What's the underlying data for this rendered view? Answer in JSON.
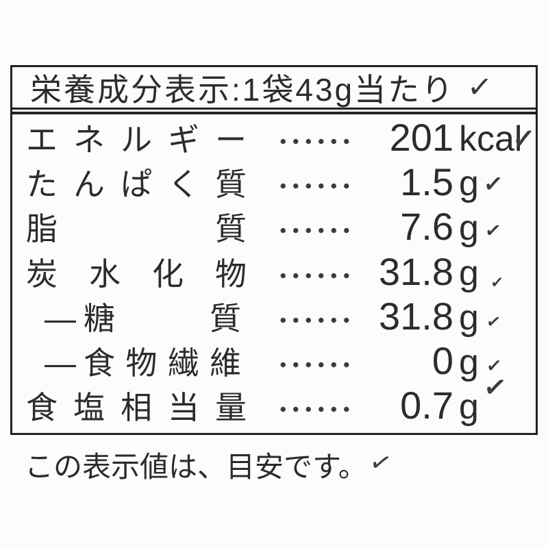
{
  "colors": {
    "text": "#2c2c2c",
    "border": "#222222",
    "background": "#fcfcfc",
    "check_mark": "#3d3d3d"
  },
  "icons": {
    "check": "✓"
  },
  "header": {
    "title": "栄養成分表示:1袋43g当たり"
  },
  "table": {
    "rows": [
      {
        "label": "エネルギー",
        "value": "201",
        "unit": "kcal",
        "sub": false
      },
      {
        "label": "たんぱく質",
        "value": "1.5",
        "unit": "g",
        "sub": false
      },
      {
        "label": "脂質",
        "value": "7.6",
        "unit": "g",
        "sub": false
      },
      {
        "label": "炭水化物",
        "value": "31.8",
        "unit": "g",
        "sub": false
      },
      {
        "label": "糖質",
        "dash": "―",
        "value": "31.8",
        "unit": "g",
        "sub": true
      },
      {
        "label": "食物繊維",
        "dash": "―",
        "value": "0",
        "unit": "g",
        "sub": true
      },
      {
        "label": "食塩相当量",
        "value": "0.7",
        "unit": "g",
        "sub": false
      }
    ]
  },
  "footer": {
    "note": "この表示値は、目安です。"
  }
}
